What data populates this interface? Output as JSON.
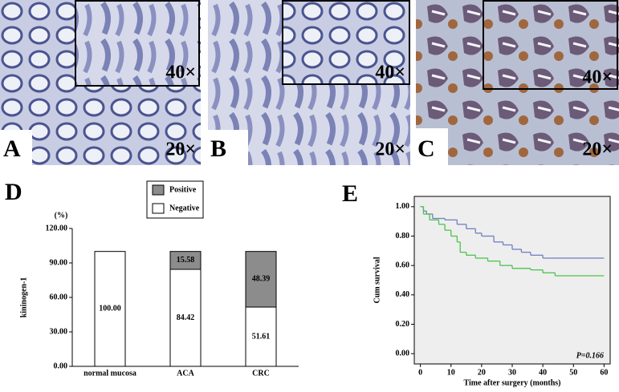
{
  "panels": [
    {
      "label": "A",
      "inset_zoom": "40×",
      "main_zoom": "20×"
    },
    {
      "label": "B",
      "inset_zoom": "40×",
      "main_zoom": "20×"
    },
    {
      "label": "C",
      "inset_zoom": "40×",
      "main_zoom": "20×"
    }
  ],
  "chart_data": [
    {
      "type": "bar",
      "stacked": true,
      "panel_label": "D",
      "y_unit": "(%)",
      "ylabel": "kininogen-1",
      "categories": [
        "normal mucosa",
        "ACA",
        "CRC"
      ],
      "series": [
        {
          "name": "Negative",
          "color": "#ffffff",
          "values": [
            100.0,
            84.42,
            51.61
          ],
          "value_labels": [
            "100.00",
            "84.42",
            "51.61"
          ]
        },
        {
          "name": "Positive",
          "color": "#8c8c8c",
          "values": [
            null,
            15.58,
            48.39
          ],
          "value_labels": [
            null,
            "15.58",
            "48.39"
          ]
        }
      ],
      "ylim": [
        0,
        120
      ],
      "yticks": [
        {
          "value": 0,
          "label": "0.00"
        },
        {
          "value": 30,
          "label": "30.00"
        },
        {
          "value": 60,
          "label": "60.00"
        },
        {
          "value": 90,
          "label": "90.00"
        },
        {
          "value": 120,
          "label": "120.00"
        }
      ]
    },
    {
      "type": "line",
      "step": true,
      "panel_label": "E",
      "ylabel": "Cum survival",
      "xlabel": "Time after surgery (months)",
      "annotation": "P=0.166",
      "series": [
        {
          "color": "#6f7fc0",
          "x": [
            0,
            1,
            2,
            4,
            8,
            12,
            15,
            18,
            20,
            24,
            27,
            30,
            33,
            36,
            40,
            60
          ],
          "values": [
            1.0,
            0.97,
            0.95,
            0.92,
            0.91,
            0.88,
            0.85,
            0.82,
            0.8,
            0.76,
            0.74,
            0.71,
            0.69,
            0.67,
            0.65,
            0.65
          ]
        },
        {
          "color": "#4cc34c",
          "x": [
            0,
            1,
            3,
            6,
            8,
            10,
            12,
            13,
            15,
            18,
            22,
            26,
            30,
            36,
            40,
            44,
            60
          ],
          "values": [
            1.0,
            0.95,
            0.91,
            0.88,
            0.84,
            0.8,
            0.76,
            0.69,
            0.67,
            0.65,
            0.63,
            0.6,
            0.58,
            0.57,
            0.55,
            0.53,
            0.53
          ]
        }
      ],
      "xlim": [
        -2,
        62
      ],
      "xticks": [
        0,
        10,
        20,
        30,
        40,
        50,
        60
      ],
      "ylim": [
        -0.07,
        1.07
      ],
      "yticks": [
        {
          "value": 0,
          "label": "0.00"
        },
        {
          "value": 0.2,
          "label": "0.20"
        },
        {
          "value": 0.4,
          "label": "0.40"
        },
        {
          "value": 0.6,
          "label": "0.60"
        },
        {
          "value": 0.8,
          "label": "0.80"
        },
        {
          "value": 1.0,
          "label": "1.00"
        }
      ]
    }
  ]
}
